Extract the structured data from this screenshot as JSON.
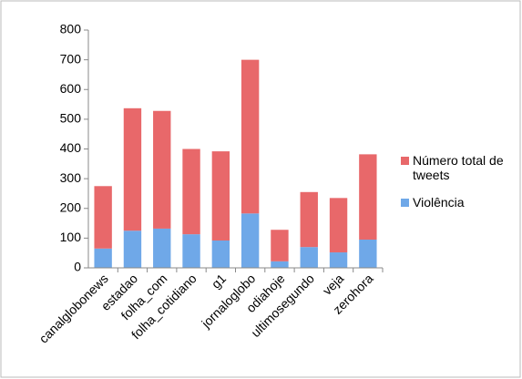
{
  "chart_data": {
    "type": "stacked_bar",
    "categories": [
      "canalglobonews",
      "estadao",
      "folha_com",
      "folha_cotidiano",
      "g1",
      "jornaloglobo",
      "odiahoje",
      "ultimosegundo",
      "veja",
      "zerohora"
    ],
    "series": [
      {
        "name": "Violência",
        "color": "#6fa8e8",
        "values": [
          65,
          125,
          132,
          113,
          92,
          183,
          22,
          70,
          52,
          95
        ]
      },
      {
        "name": "Número total de tweets",
        "color": "#e8686a",
        "values": [
          210,
          412,
          396,
          287,
          300,
          517,
          106,
          185,
          183,
          287
        ]
      }
    ],
    "ylim": [
      0,
      800
    ],
    "yticks": [
      0,
      100,
      200,
      300,
      400,
      500,
      600,
      700,
      800
    ],
    "legend": "right"
  }
}
